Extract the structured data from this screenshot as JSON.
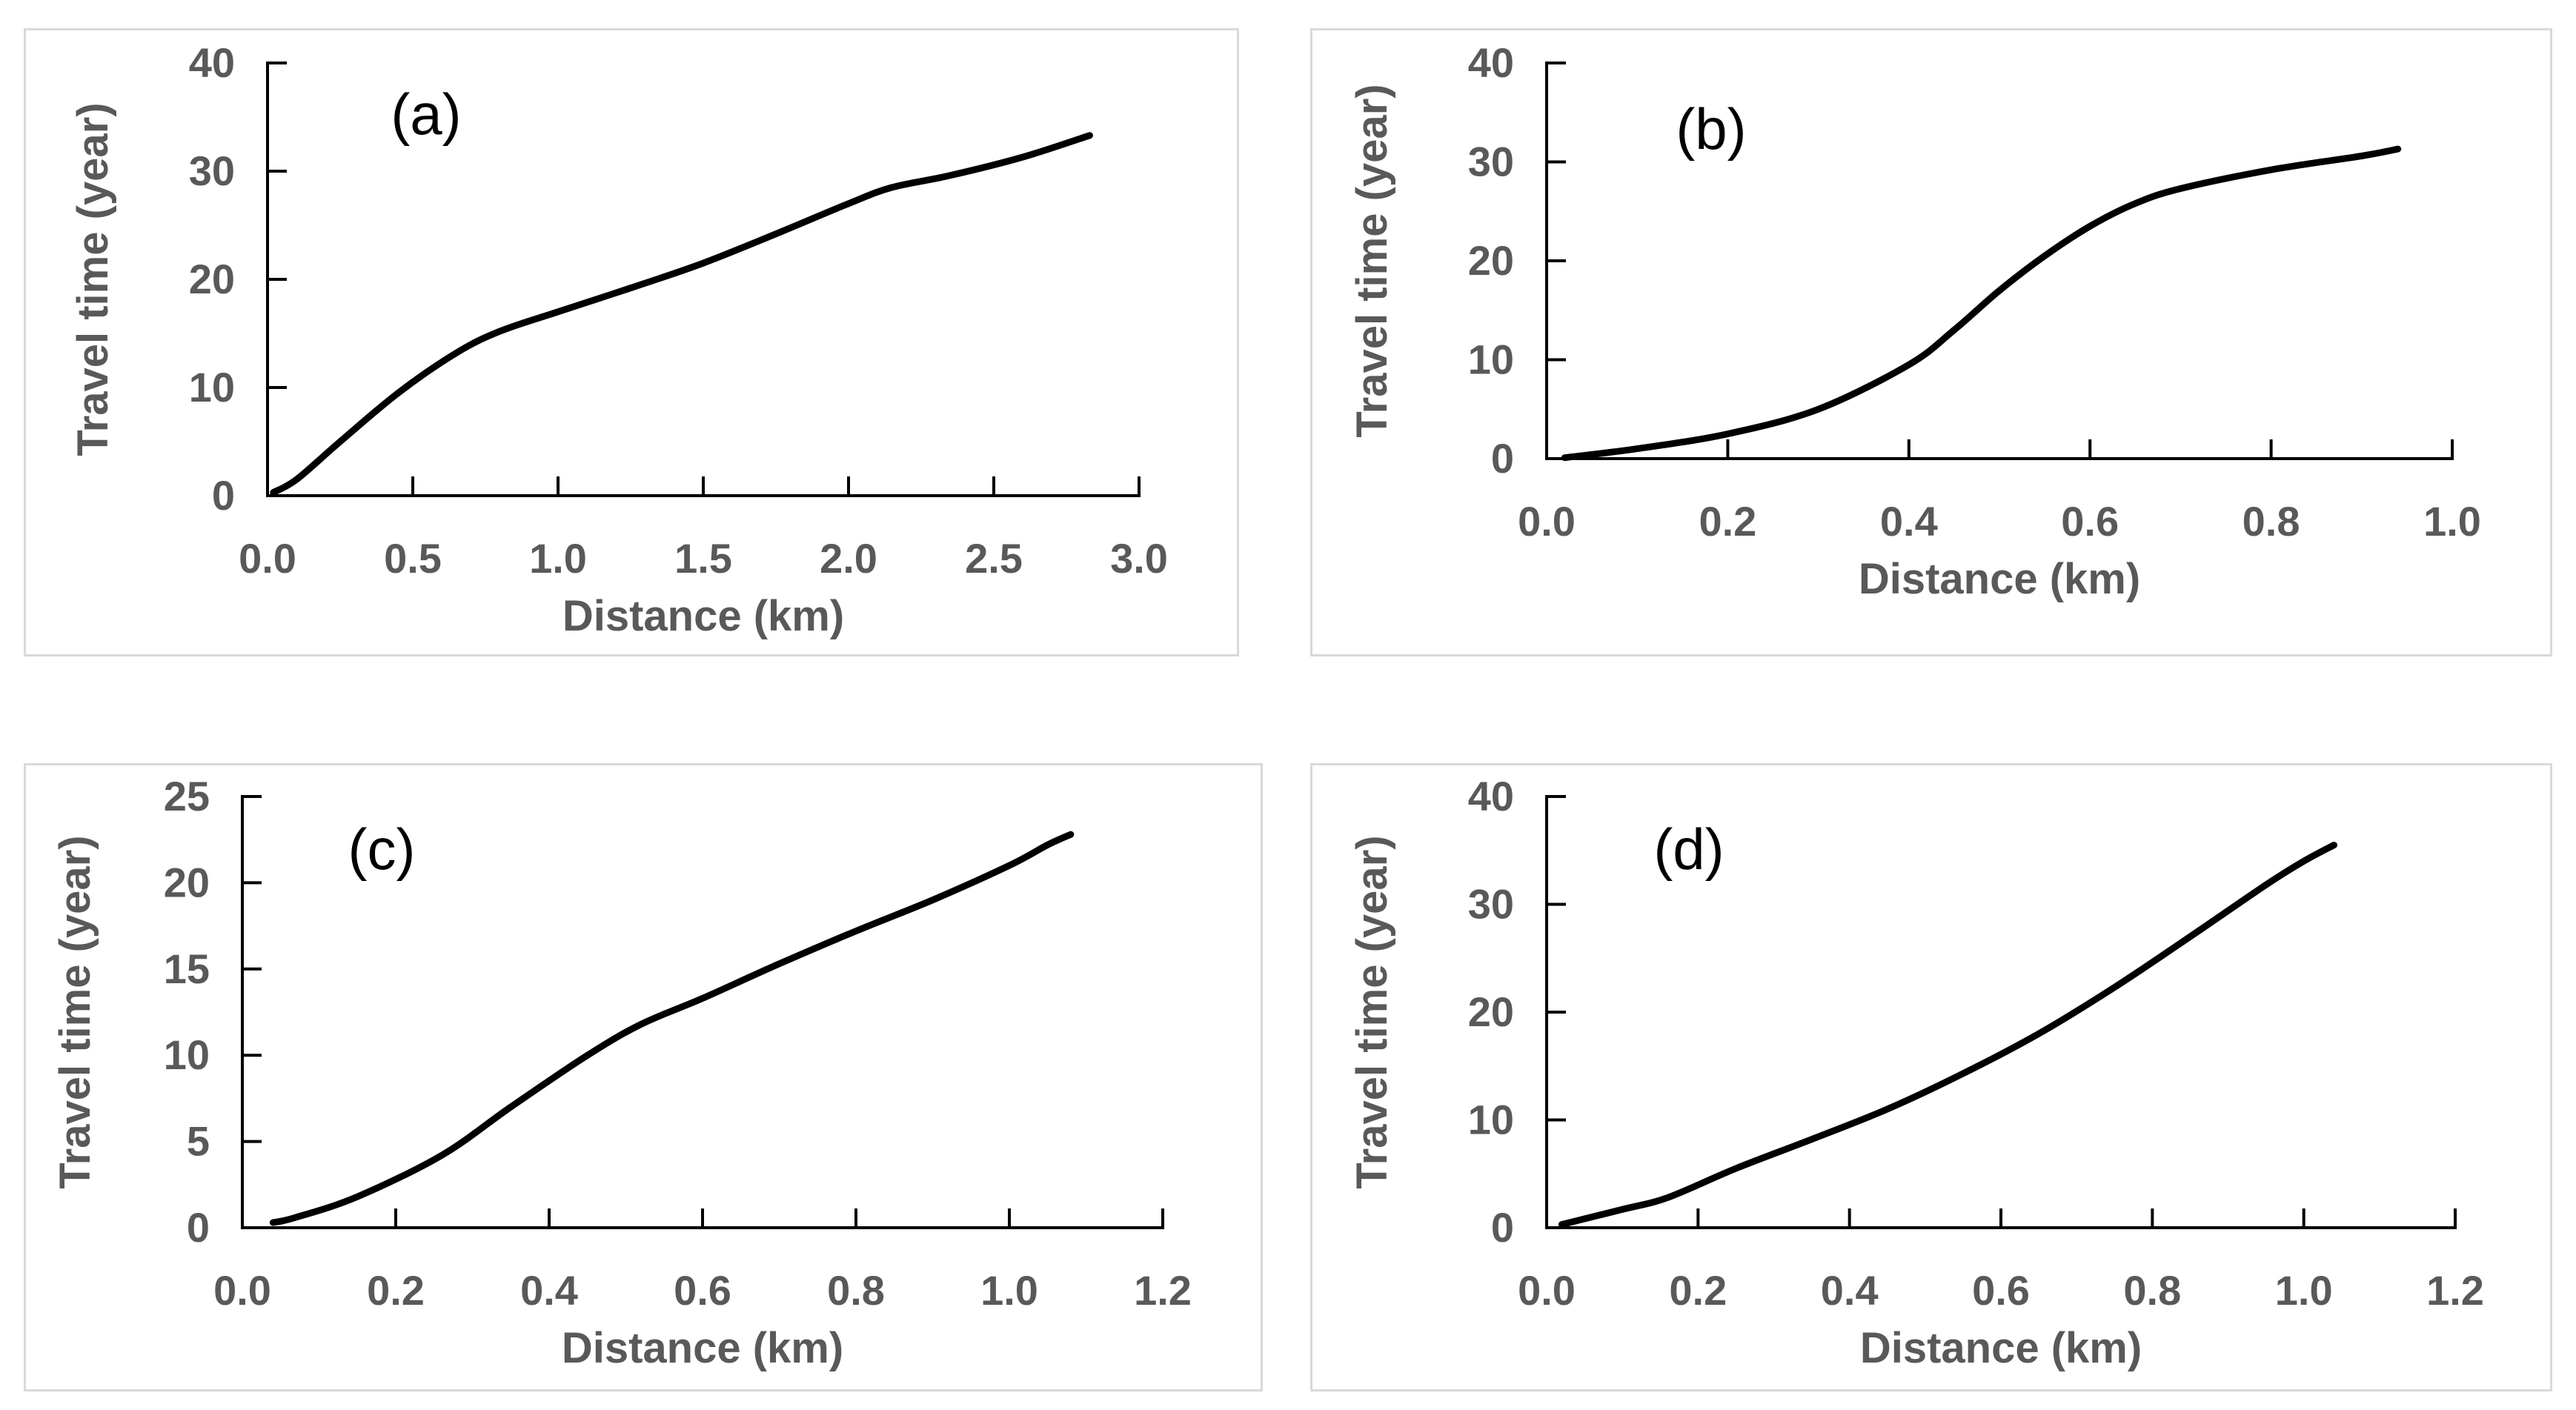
{
  "chart_data": [
    {
      "type": "line",
      "title": "(a)",
      "xlabel": "Distance (km)",
      "ylabel": "Travel time (year)",
      "xlim": [
        0,
        3.0
      ],
      "ylim": [
        0,
        40
      ],
      "x_ticks": [
        "0.0",
        "0.5",
        "1.0",
        "1.5",
        "2.0",
        "2.5",
        "3.0"
      ],
      "y_ticks": [
        "0",
        "10",
        "20",
        "30",
        "40"
      ],
      "series": [
        {
          "name": "Travel time",
          "x": [
            0.02,
            0.1,
            0.25,
            0.45,
            0.65,
            0.8,
            1.0,
            1.25,
            1.5,
            1.75,
            2.0,
            2.15,
            2.35,
            2.6,
            2.83
          ],
          "y": [
            0.3,
            1.5,
            5,
            9.5,
            13.2,
            15.2,
            17,
            19.2,
            21.5,
            24.2,
            27,
            28.5,
            29.6,
            31.3,
            33.3
          ]
        }
      ]
    },
    {
      "type": "line",
      "title": "(b)",
      "xlabel": "Distance (km)",
      "ylabel": "Travel time (year)",
      "xlim": [
        0,
        1.0
      ],
      "ylim": [
        0,
        40
      ],
      "x_ticks": [
        "0.0",
        "0.2",
        "0.4",
        "0.6",
        "0.8",
        "1.0"
      ],
      "y_ticks": [
        "0",
        "10",
        "20",
        "30",
        "40"
      ],
      "series": [
        {
          "name": "Travel time",
          "x": [
            0.02,
            0.1,
            0.2,
            0.3,
            0.4,
            0.45,
            0.5,
            0.55,
            0.6,
            0.65,
            0.7,
            0.8,
            0.9,
            0.94
          ],
          "y": [
            0.1,
            1,
            2.5,
            5,
            9.5,
            13,
            17,
            20.5,
            23.5,
            25.8,
            27.3,
            29.2,
            30.6,
            31.3
          ]
        }
      ]
    },
    {
      "type": "line",
      "title": "(c)",
      "xlabel": "Distance (km)",
      "ylabel": "Travel time (year)",
      "xlim": [
        0,
        1.2
      ],
      "ylim": [
        0,
        25
      ],
      "x_ticks": [
        "0.0",
        "0.2",
        "0.4",
        "0.6",
        "0.8",
        "1.0",
        "1.2"
      ],
      "y_ticks": [
        "0",
        "5",
        "10",
        "15",
        "20",
        "25"
      ],
      "series": [
        {
          "name": "Travel time",
          "x": [
            0.04,
            0.07,
            0.15,
            0.26,
            0.35,
            0.45,
            0.52,
            0.6,
            0.7,
            0.8,
            0.9,
            1.0,
            1.05,
            1.08
          ],
          "y": [
            0.3,
            0.6,
            1.8,
            4.2,
            7,
            10,
            11.8,
            13.3,
            15.3,
            17.2,
            19,
            21,
            22.2,
            22.8
          ]
        }
      ]
    },
    {
      "type": "line",
      "title": "(d)",
      "xlabel": "Distance (km)",
      "ylabel": "Travel time (year)",
      "xlim": [
        0,
        1.2
      ],
      "ylim": [
        0,
        40
      ],
      "x_ticks": [
        "0.0",
        "0.2",
        "0.4",
        "0.6",
        "0.8",
        "1.0",
        "1.2"
      ],
      "y_ticks": [
        "0",
        "10",
        "20",
        "30",
        "40"
      ],
      "series": [
        {
          "name": "Travel time",
          "x": [
            0.02,
            0.1,
            0.16,
            0.25,
            0.35,
            0.45,
            0.55,
            0.65,
            0.75,
            0.85,
            0.95,
            1.0,
            1.04
          ],
          "y": [
            0.3,
            1.7,
            2.8,
            5.5,
            8.2,
            11,
            14.3,
            18,
            22.3,
            27,
            31.8,
            34,
            35.5
          ]
        }
      ]
    }
  ]
}
